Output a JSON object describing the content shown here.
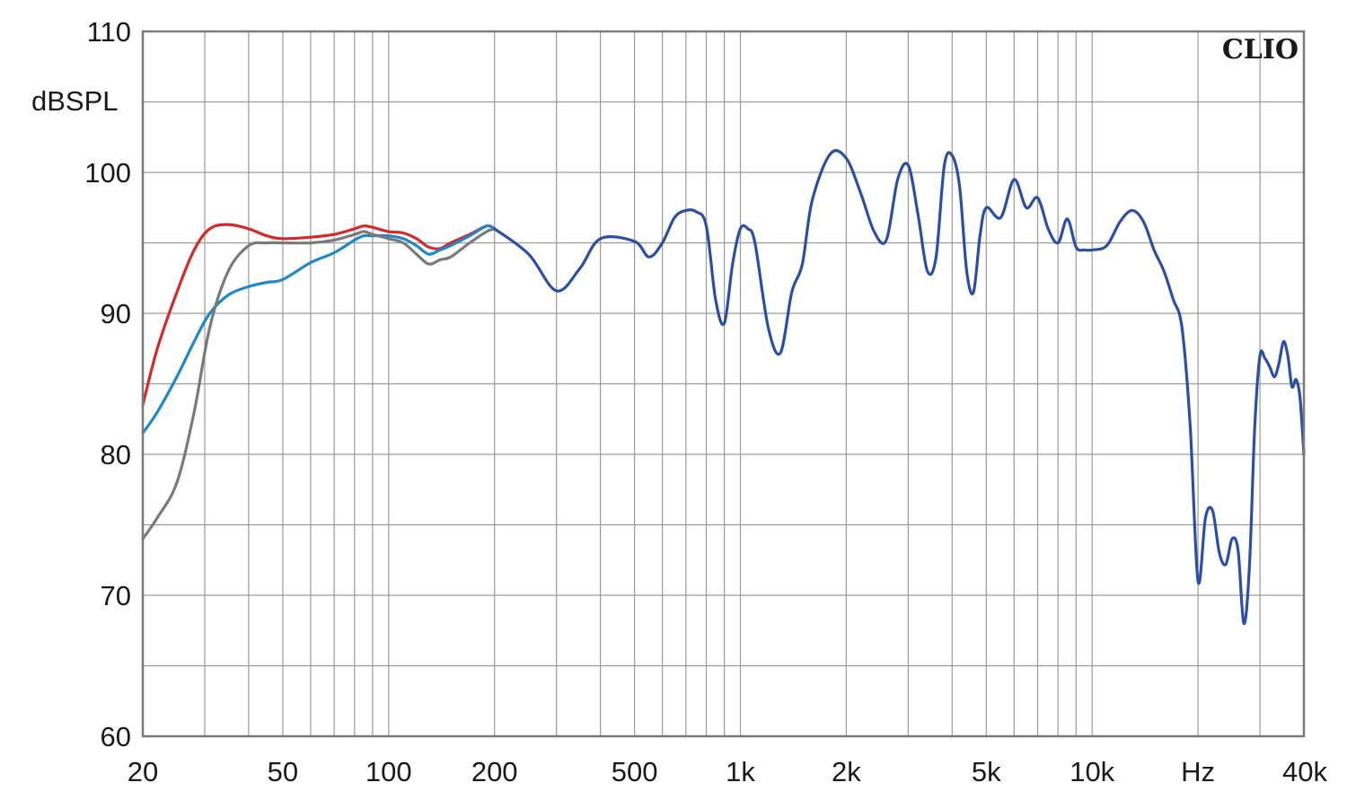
{
  "chart_data": {
    "type": "line",
    "title": "",
    "ylabel": "dBSPL",
    "xlabel": "Hz",
    "x_scale": "log",
    "xlim": [
      20,
      40000
    ],
    "ylim": [
      60,
      110
    ],
    "grid": true,
    "brand": "CLIO",
    "y_ticks": [
      {
        "value": 60,
        "label": "60"
      },
      {
        "value": 70,
        "label": "70"
      },
      {
        "value": 80,
        "label": "80"
      },
      {
        "value": 90,
        "label": "90"
      },
      {
        "value": 100,
        "label": "100"
      },
      {
        "value": 110,
        "label": "110"
      }
    ],
    "x_ticks": [
      {
        "value": 20,
        "label": "20"
      },
      {
        "value": 50,
        "label": "50"
      },
      {
        "value": 100,
        "label": "100"
      },
      {
        "value": 200,
        "label": "200"
      },
      {
        "value": 500,
        "label": "500"
      },
      {
        "value": 1000,
        "label": "1k"
      },
      {
        "value": 2000,
        "label": "2k"
      },
      {
        "value": 5000,
        "label": "5k"
      },
      {
        "value": 10000,
        "label": "10k"
      },
      {
        "value": 20000,
        "label": "Hz"
      },
      {
        "value": 40000,
        "label": "40k"
      }
    ],
    "x_gridlines": [
      20,
      30,
      40,
      50,
      60,
      70,
      80,
      90,
      100,
      200,
      300,
      400,
      500,
      600,
      700,
      800,
      900,
      1000,
      2000,
      3000,
      4000,
      5000,
      6000,
      7000,
      8000,
      9000,
      10000,
      20000,
      30000,
      40000
    ],
    "y_gridlines": [
      60,
      65,
      70,
      75,
      80,
      85,
      90,
      95,
      100,
      105,
      110
    ],
    "series": [
      {
        "color": "#d42a2a",
        "x": [
          20,
          22,
          25,
          28,
          31,
          35,
          40,
          45,
          50,
          60,
          70,
          80,
          85,
          90,
          100,
          110,
          120,
          130,
          140,
          150,
          170,
          190,
          200
        ],
        "y": [
          83.5,
          87.5,
          91.5,
          94.5,
          96.0,
          96.3,
          96.0,
          95.5,
          95.3,
          95.4,
          95.6,
          96.0,
          96.2,
          96.1,
          95.8,
          95.7,
          95.3,
          94.7,
          94.6,
          95.0,
          95.6,
          96.2,
          96.0
        ]
      },
      {
        "color": "#1e88c8",
        "x": [
          20,
          22,
          25,
          28,
          31,
          35,
          40,
          45,
          50,
          60,
          70,
          80,
          85,
          90,
          100,
          110,
          120,
          130,
          140,
          150,
          170,
          190,
          200
        ],
        "y": [
          81.5,
          83.0,
          85.5,
          88.0,
          90.0,
          91.3,
          91.9,
          92.2,
          92.4,
          93.6,
          94.3,
          95.2,
          95.5,
          95.5,
          95.5,
          95.3,
          94.8,
          94.2,
          94.5,
          94.8,
          95.5,
          96.2,
          96.0
        ]
      },
      {
        "color": "#7a7a7a",
        "x": [
          20,
          22,
          25,
          28,
          31,
          35,
          40,
          45,
          50,
          60,
          70,
          80,
          85,
          90,
          100,
          110,
          120,
          130,
          140,
          150,
          170,
          190,
          200
        ],
        "y": [
          74.0,
          75.5,
          78.0,
          83.0,
          89.0,
          93.0,
          94.8,
          95.0,
          95.0,
          95.0,
          95.2,
          95.6,
          95.8,
          95.6,
          95.3,
          95.0,
          94.2,
          93.5,
          93.8,
          94.0,
          95.0,
          95.8,
          96.0
        ]
      },
      {
        "color": "#2d4fa3",
        "x": [
          200,
          250,
          300,
          350,
          400,
          500,
          550,
          600,
          650,
          700,
          750,
          800,
          850,
          900,
          950,
          1000,
          1050,
          1100,
          1200,
          1300,
          1400,
          1500,
          1600,
          1800,
          2000,
          2200,
          2400,
          2600,
          2800,
          3000,
          3200,
          3400,
          3600,
          3800,
          4000,
          4200,
          4400,
          4600,
          4800,
          5000,
          5500,
          6000,
          6500,
          7000,
          7500,
          8000,
          8500,
          9000,
          9500,
          10000,
          11000,
          12000,
          13000,
          14000,
          15000,
          16000,
          17000,
          18000,
          19000,
          20000,
          21000,
          22000,
          23000,
          24000,
          25000,
          26000,
          27000,
          28000,
          29000,
          30000,
          31000,
          32000,
          33000,
          34000,
          35000,
          36000,
          37000,
          38000,
          39000,
          40000
        ],
        "y": [
          96.0,
          94.2,
          91.6,
          93.2,
          95.3,
          95.1,
          94.0,
          95.0,
          96.8,
          97.3,
          97.2,
          96.2,
          91.0,
          89.3,
          93.5,
          96.0,
          96.0,
          95.0,
          89.0,
          87.2,
          91.5,
          93.5,
          98.0,
          101.3,
          101.0,
          98.5,
          95.8,
          95.2,
          99.5,
          100.5,
          97.0,
          93.0,
          94.0,
          100.5,
          101.2,
          99.0,
          93.0,
          91.5,
          95.5,
          97.5,
          96.8,
          99.5,
          97.5,
          98.2,
          96.0,
          95.0,
          96.7,
          94.7,
          94.5,
          94.5,
          94.8,
          96.5,
          97.3,
          96.5,
          94.5,
          93.0,
          91.0,
          89.0,
          82.0,
          71.0,
          75.5,
          76.0,
          73.0,
          72.2,
          74.0,
          73.2,
          68.0,
          72.0,
          82.0,
          87.0,
          86.8,
          86.2,
          85.5,
          86.5,
          88.0,
          87.0,
          84.8,
          85.3,
          84.0,
          80.0
        ]
      }
    ]
  }
}
